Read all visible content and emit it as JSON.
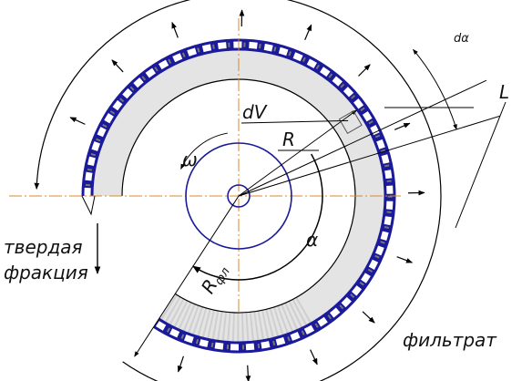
{
  "labels": {
    "d_alpha": "dα",
    "dV": "dV",
    "L": "L",
    "R": "R",
    "omega": "ω",
    "alpha": "α",
    "R_fl": "R",
    "R_fl_sub": "фл",
    "solid_1": "твердая",
    "solid_2": "фракция",
    "filtrate": "фильтрат"
  }
}
